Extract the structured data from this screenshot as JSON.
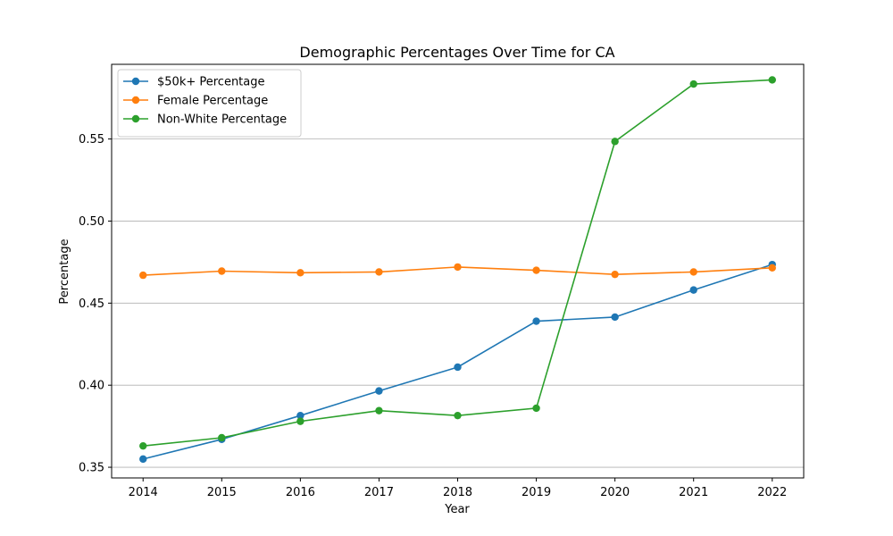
{
  "chart_data": {
    "type": "line",
    "title": "Demographic Percentages Over Time for CA",
    "xlabel": "Year",
    "ylabel": "Percentage",
    "x": [
      2014,
      2015,
      2016,
      2017,
      2018,
      2019,
      2020,
      2021,
      2022
    ],
    "x_ticks": [
      "2014",
      "2015",
      "2016",
      "2017",
      "2018",
      "2019",
      "2020",
      "2021",
      "2022"
    ],
    "y_ticks": [
      "0.35",
      "0.40",
      "0.45",
      "0.50",
      "0.55"
    ],
    "y_tick_values": [
      0.35,
      0.4,
      0.45,
      0.5,
      0.55
    ],
    "xlim": [
      2013.6,
      2022.4
    ],
    "ylim": [
      0.3435,
      0.5955
    ],
    "grid": "y",
    "legend_position": "upper-left",
    "series": [
      {
        "name": "$50k+ Percentage",
        "color": "#1f77b4",
        "values": [
          0.355,
          0.367,
          0.3815,
          0.3965,
          0.411,
          0.439,
          0.4415,
          0.458,
          0.4735
        ]
      },
      {
        "name": "Female Percentage",
        "color": "#ff7f0e",
        "values": [
          0.467,
          0.4695,
          0.4685,
          0.469,
          0.472,
          0.47,
          0.4675,
          0.469,
          0.4715
        ]
      },
      {
        "name": "Non-White Percentage",
        "color": "#2ca02c",
        "values": [
          0.363,
          0.368,
          0.378,
          0.3845,
          0.3815,
          0.386,
          0.5485,
          0.5835,
          0.586
        ]
      }
    ]
  }
}
